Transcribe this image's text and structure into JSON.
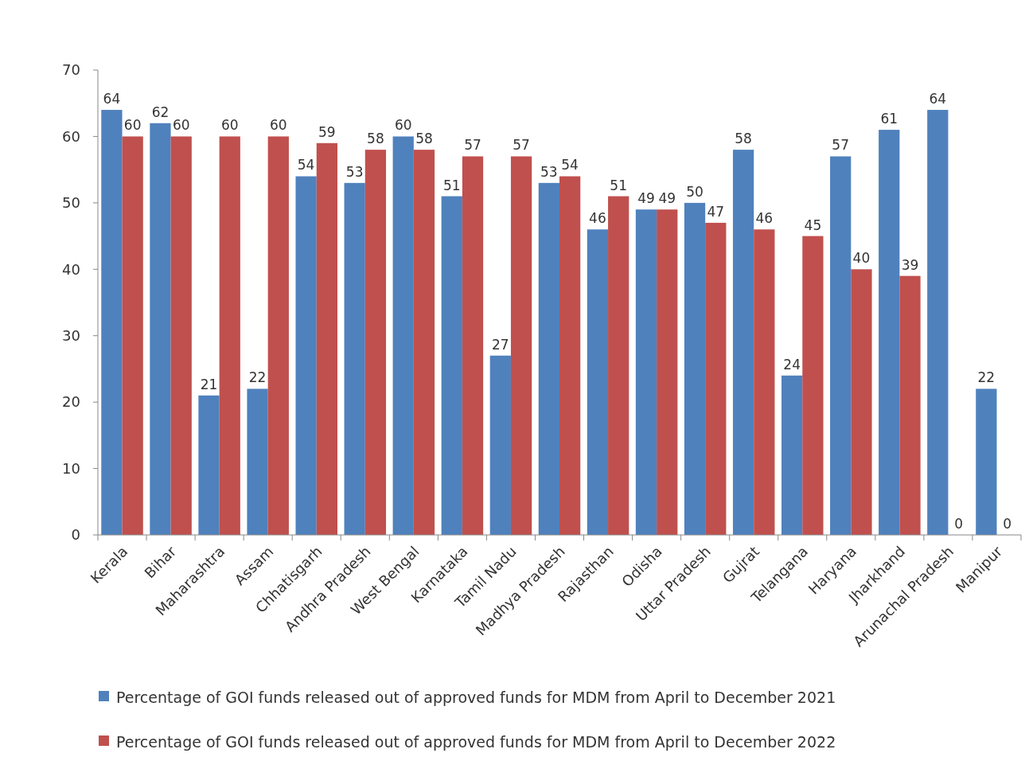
{
  "chart_data": {
    "type": "bar",
    "categories": [
      "Kerala",
      "Bihar",
      "Maharashtra",
      "Assam",
      "Chhatisgarh",
      "Andhra Pradesh",
      "West Bengal",
      "Karnataka",
      "Tamil Nadu",
      "Madhya Pradesh",
      "Rajasthan",
      "Odisha",
      "Uttar Pradesh",
      "Gujrat",
      "Telangana",
      "Haryana",
      "Jharkhand",
      "Arunachal Pradesh",
      "Manipur"
    ],
    "series": [
      {
        "name": "Percentage of GOI funds released out of approved funds for MDM from April to December 2021",
        "color": "#4f81bd",
        "values": [
          64,
          62,
          21,
          22,
          54,
          53,
          60,
          51,
          27,
          53,
          46,
          49,
          50,
          58,
          24,
          57,
          61,
          64,
          22
        ]
      },
      {
        "name": "Percentage of GOI funds released out of approved funds for MDM from April to December 2022",
        "color": "#c0504d",
        "values": [
          60,
          60,
          60,
          60,
          59,
          58,
          58,
          57,
          57,
          54,
          51,
          49,
          47,
          46,
          45,
          40,
          39,
          0,
          0
        ]
      }
    ],
    "ylim": [
      0,
      70
    ],
    "yticks": [
      0,
      10,
      20,
      30,
      40,
      50,
      60,
      70
    ],
    "grid": false,
    "legend": "bottom",
    "data_labels": true
  }
}
